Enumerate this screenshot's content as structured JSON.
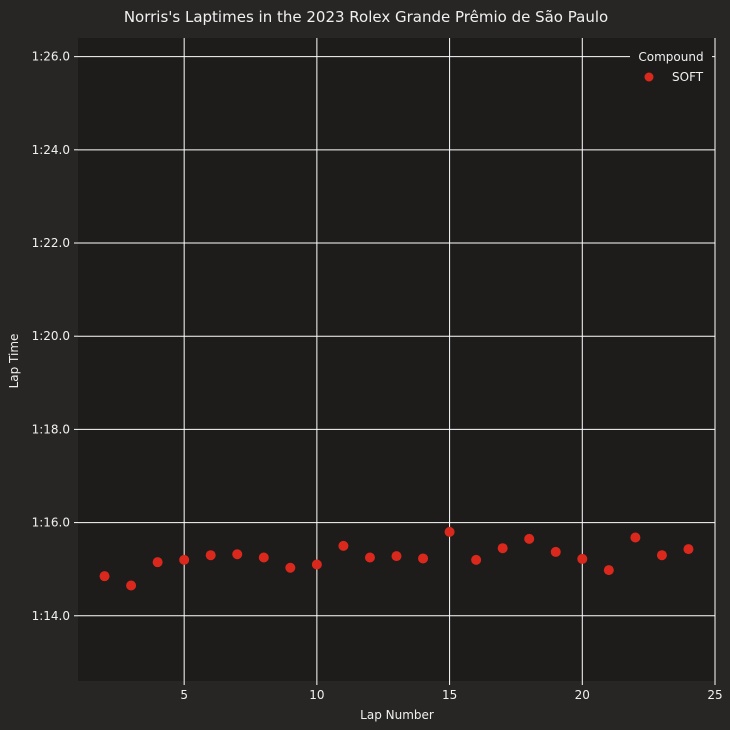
{
  "chart_data": {
    "type": "scatter",
    "title": "Norris's Laptimes in the 2023 Rolex Grande Prêmio de São Paulo",
    "xlabel": "Lap Number",
    "ylabel": "Lap Time",
    "xlim": [
      1,
      25
    ],
    "ylim": [
      72.6,
      86.4
    ],
    "xticks": [
      5,
      10,
      15,
      20,
      25
    ],
    "yticks": [
      {
        "value": 74,
        "label": "1:14.0"
      },
      {
        "value": 76,
        "label": "1:16.0"
      },
      {
        "value": 78,
        "label": "1:18.0"
      },
      {
        "value": 80,
        "label": "1:20.0"
      },
      {
        "value": 82,
        "label": "1:22.0"
      },
      {
        "value": 84,
        "label": "1:24.0"
      },
      {
        "value": 86,
        "label": "1:26.0"
      }
    ],
    "grid": true,
    "legend": {
      "title": "Compound",
      "placement": "top-right"
    },
    "series": [
      {
        "name": "SOFT",
        "color": "#da291c",
        "x": [
          2,
          3,
          4,
          5,
          6,
          7,
          8,
          9,
          10,
          11,
          12,
          13,
          14,
          15,
          16,
          17,
          18,
          19,
          20,
          21,
          22,
          23,
          24
        ],
        "y": [
          74.85,
          74.65,
          75.15,
          75.2,
          75.3,
          75.32,
          75.25,
          75.03,
          75.1,
          75.5,
          75.25,
          75.28,
          75.23,
          75.8,
          75.2,
          75.45,
          75.65,
          75.37,
          75.22,
          74.98,
          75.68,
          75.3,
          75.43
        ]
      }
    ],
    "colors": {
      "background": "#272624",
      "plot_background": "#1d1c1b",
      "grid": "#ffffff",
      "text": "#f0f0f0"
    }
  }
}
